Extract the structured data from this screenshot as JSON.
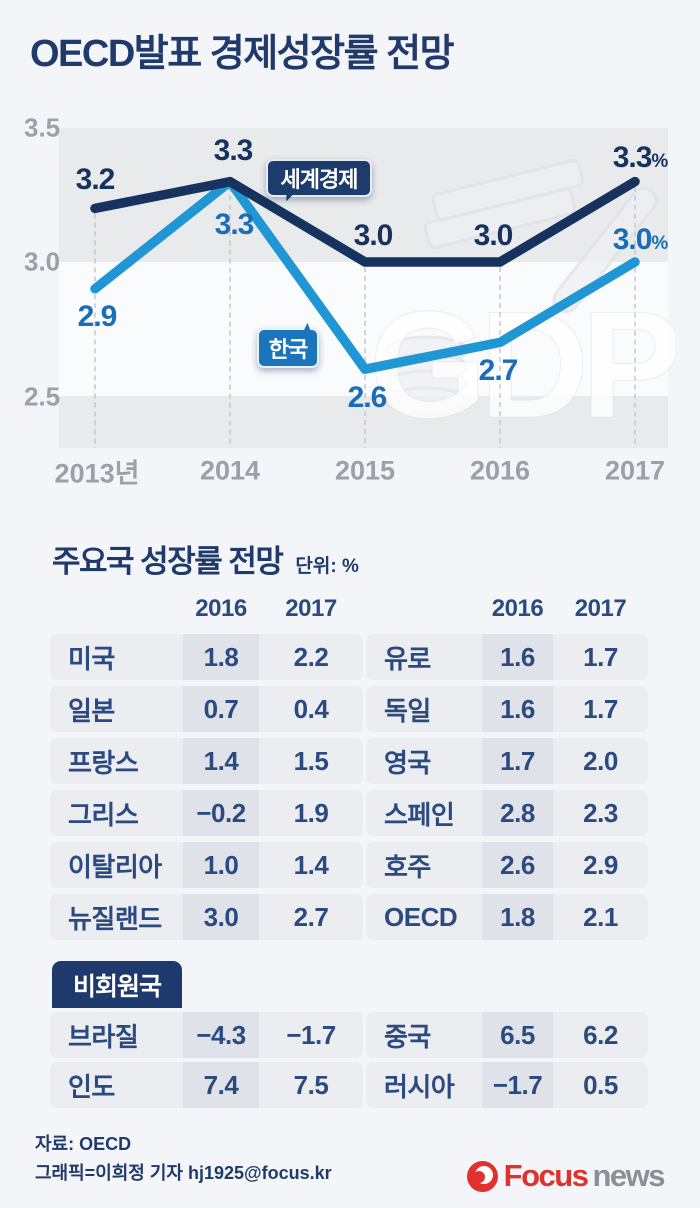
{
  "title": "OECD발표 경제성장률 전망",
  "chart_data": {
    "type": "line",
    "x": [
      "2013년",
      "2014",
      "2015",
      "2016",
      "2017"
    ],
    "ytick_labels": [
      "3.5",
      "3.0",
      "2.5"
    ],
    "ylim": [
      2.5,
      3.5
    ],
    "unit": "%",
    "grid": "dashed-vertical",
    "watermark": "GDP",
    "series": [
      {
        "name": "세계경제",
        "values": [
          3.2,
          3.3,
          3.0,
          3.0,
          3.3
        ],
        "labels": [
          "3.2",
          "3.3",
          "3.0",
          "3.0",
          "3.3"
        ],
        "last_suffix": "%",
        "color": "#16335f",
        "label_color": "#16335f"
      },
      {
        "name": "한국",
        "values": [
          2.9,
          3.3,
          2.6,
          2.7,
          3.0
        ],
        "labels": [
          "2.9",
          "3.3",
          "2.6",
          "2.7",
          "3.0"
        ],
        "last_suffix": "%",
        "color": "#2196d4",
        "label_color": "#1a6db6"
      }
    ]
  },
  "section2": {
    "title": "주요국 성장률 전망",
    "unit": "단위: %",
    "col_headers": [
      "2016",
      "2017"
    ]
  },
  "tables": {
    "left": {
      "rows": [
        {
          "country": "미국",
          "y2016": "1.8",
          "y2017": "2.2"
        },
        {
          "country": "일본",
          "y2016": "0.7",
          "y2017": "0.4"
        },
        {
          "country": "프랑스",
          "y2016": "1.4",
          "y2017": "1.5"
        },
        {
          "country": "그리스",
          "y2016": "−0.2",
          "y2017": "1.9"
        },
        {
          "country": "이탈리아",
          "y2016": "1.0",
          "y2017": "1.4"
        },
        {
          "country": "뉴질랜드",
          "y2016": "3.0",
          "y2017": "2.7"
        }
      ]
    },
    "right": {
      "rows": [
        {
          "country": "유로",
          "y2016": "1.6",
          "y2017": "1.7"
        },
        {
          "country": "독일",
          "y2016": "1.6",
          "y2017": "1.7"
        },
        {
          "country": "영국",
          "y2016": "1.7",
          "y2017": "2.0"
        },
        {
          "country": "스페인",
          "y2016": "2.8",
          "y2017": "2.3"
        },
        {
          "country": "호주",
          "y2016": "2.6",
          "y2017": "2.9"
        },
        {
          "country": "OECD",
          "y2016": "1.8",
          "y2017": "2.1"
        }
      ]
    }
  },
  "nonmember": {
    "badge": "비회원국",
    "left": {
      "rows": [
        {
          "country": "브라질",
          "y2016": "−4.3",
          "y2017": "−1.7"
        },
        {
          "country": "인도",
          "y2016": "7.4",
          "y2017": "7.5"
        }
      ]
    },
    "right": {
      "rows": [
        {
          "country": "중국",
          "y2016": "6.5",
          "y2017": "6.2"
        },
        {
          "country": "러시아",
          "y2016": "−1.7",
          "y2017": "0.5"
        }
      ]
    }
  },
  "footer": {
    "source": "자료: OECD",
    "credit": "그래픽=이희정 기자 hj1925@focus.kr",
    "logo": {
      "focus": "Focus",
      "news": "news"
    }
  },
  "colors": {
    "navy": "#203a6b",
    "world_line": "#16335f",
    "korea_line": "#2196d4",
    "korea_label": "#1a6db6",
    "band_gray": "#e8eaec",
    "row_gray": "#ebedf1",
    "col_gray": "#dfe3e9",
    "axis_gray": "#99a1ab",
    "accent_red": "#e0312e",
    "logo_gray": "#8b9097"
  }
}
